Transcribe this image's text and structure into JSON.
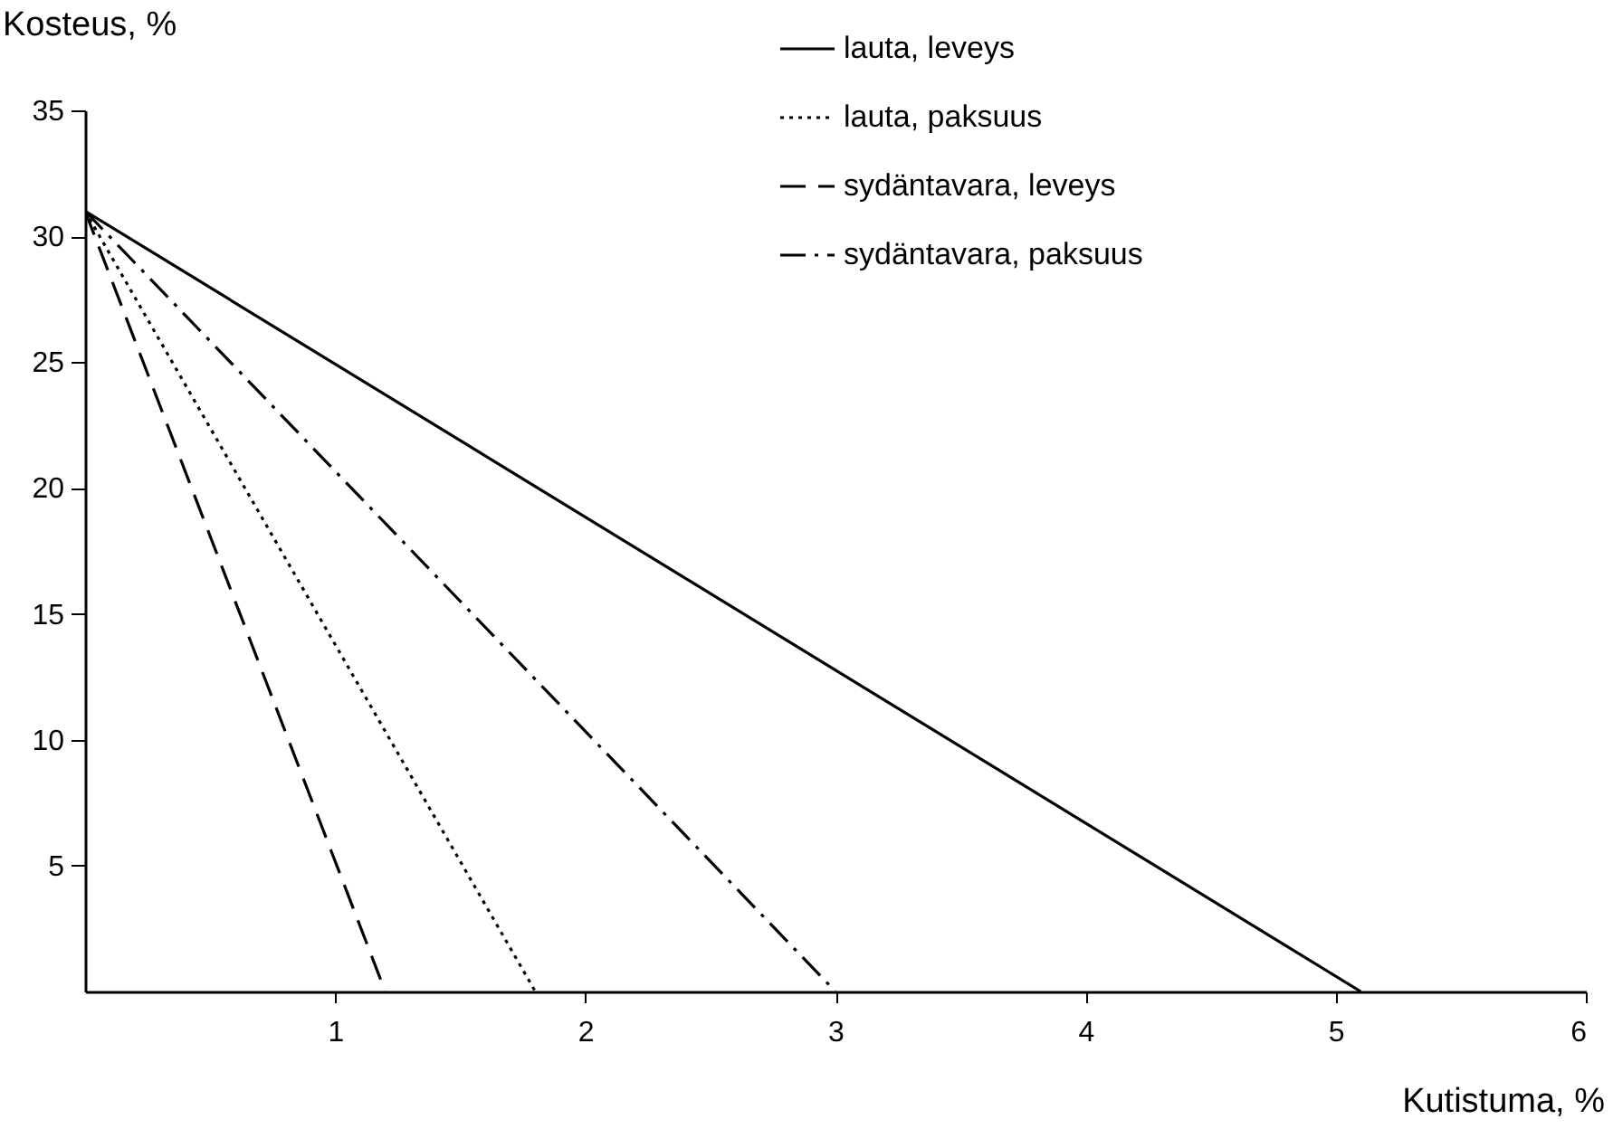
{
  "chart_data": {
    "type": "line",
    "xlabel": "Kutistuma, %",
    "ylabel": "Kosteus, %",
    "xlim": [
      0,
      6
    ],
    "ylim": [
      0,
      35
    ],
    "xticks": [
      1,
      2,
      3,
      4,
      5,
      6
    ],
    "yticks": [
      5,
      10,
      15,
      20,
      25,
      30,
      35
    ],
    "legend": "top right",
    "series": [
      {
        "name": "lauta, leveys",
        "color": "#000000",
        "line_style": "solid",
        "x": [
          0,
          5.1
        ],
        "values": [
          31,
          0
        ]
      },
      {
        "name": "lauta, paksuus",
        "color": "#000000",
        "line_style": "dotted",
        "x": [
          0,
          1.8
        ],
        "values": [
          31,
          0
        ]
      },
      {
        "name": "sydäntavara, leveys",
        "color": "#000000",
        "line_style": "dashed",
        "x": [
          0,
          1.2
        ],
        "values": [
          31,
          0
        ]
      },
      {
        "name": "sydäntavara, paksuus",
        "color": "#000000",
        "line_style": "dashdot",
        "x": [
          0,
          3.0
        ],
        "values": [
          31,
          0
        ]
      }
    ]
  }
}
